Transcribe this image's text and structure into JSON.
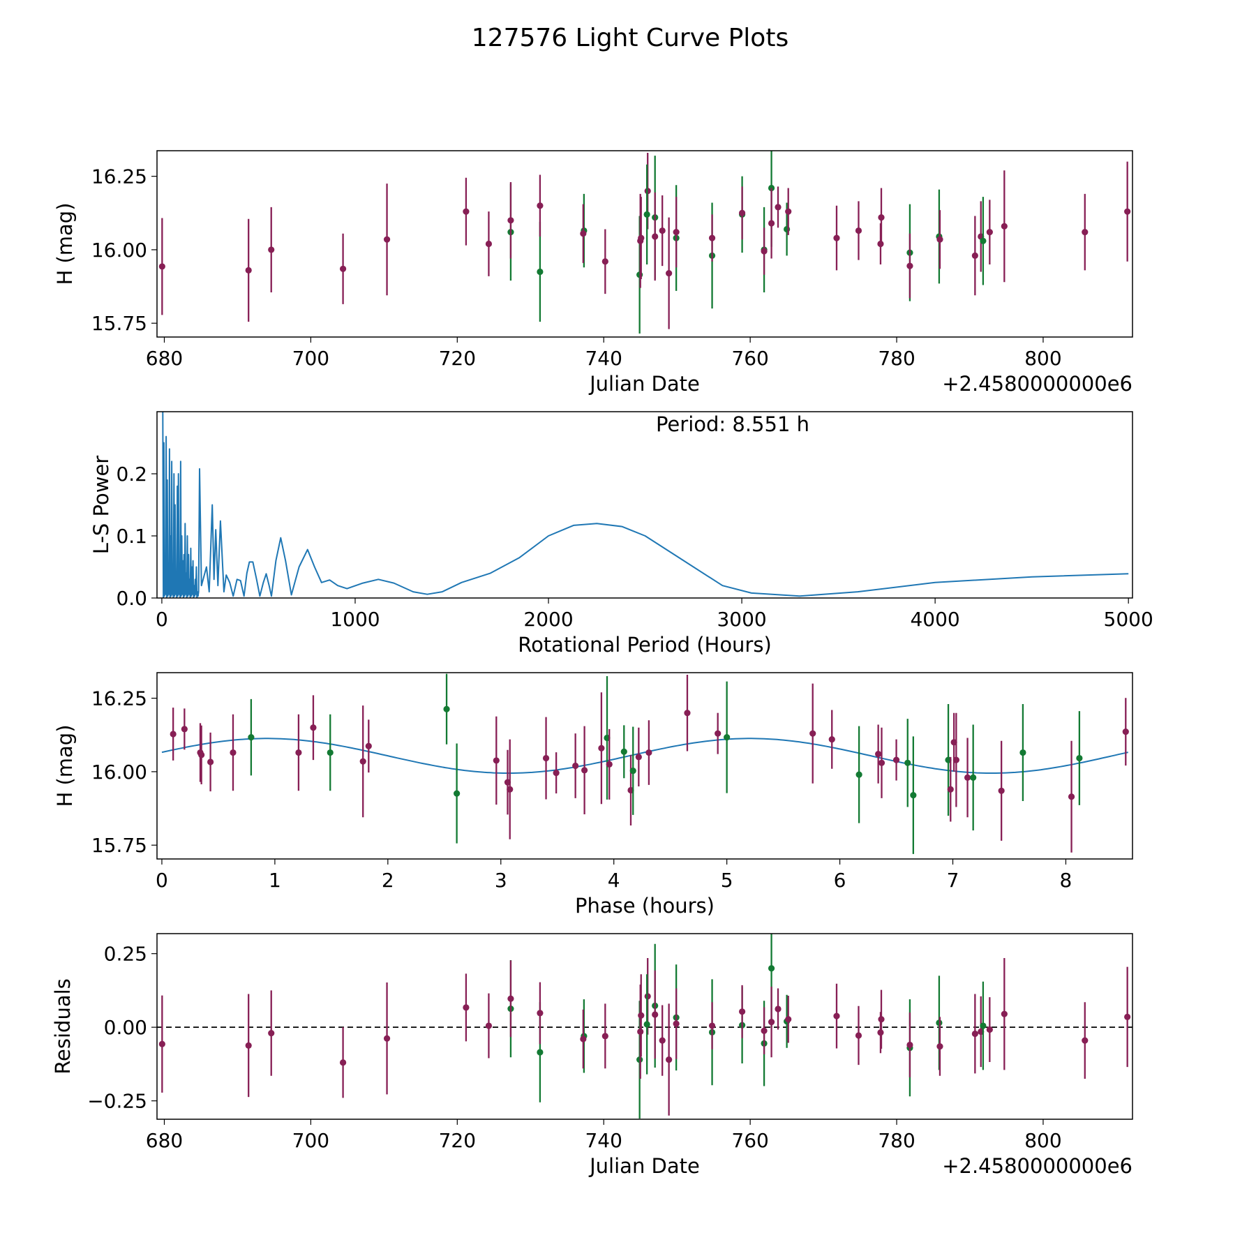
{
  "title": "127576 Light Curve Plots",
  "colors": {
    "band_a": "#871f55",
    "band_b": "#137a33",
    "periodogram": "#1f77b4",
    "zero_line": "#000000"
  },
  "chart_data": [
    {
      "type": "scatter",
      "name": "light-curve",
      "xlabel": "Julian Date",
      "ylabel": "H (mag)",
      "x_offset_label": "+2.4580000000e6",
      "xlim": [
        679.0,
        812.2
      ],
      "ylim": [
        15.703,
        16.337
      ],
      "xticks": [
        680,
        700,
        720,
        740,
        760,
        780,
        800
      ],
      "yticks": [
        {
          "v": 15.75,
          "label": "15.75"
        },
        {
          "v": 16.0,
          "label": "16.00"
        },
        {
          "v": 16.25,
          "label": "16.25"
        }
      ],
      "points": [
        {
          "jd": 679.7,
          "mag": 15.943,
          "err": 0.165,
          "band": "a",
          "res": -0.057
        },
        {
          "jd": 691.5,
          "mag": 15.93,
          "err": 0.175,
          "band": "a",
          "res": -0.062
        },
        {
          "jd": 694.6,
          "mag": 16.0,
          "err": 0.145,
          "band": "a",
          "res": -0.02
        },
        {
          "jd": 704.4,
          "mag": 15.935,
          "err": 0.12,
          "band": "a",
          "res": -0.12
        },
        {
          "jd": 710.4,
          "mag": 16.035,
          "err": 0.19,
          "band": "a",
          "res": -0.038
        },
        {
          "jd": 721.2,
          "mag": 16.13,
          "err": 0.115,
          "band": "a",
          "res": 0.067
        },
        {
          "jd": 724.3,
          "mag": 16.02,
          "err": 0.11,
          "band": "a",
          "res": 0.005
        },
        {
          "jd": 727.3,
          "mag": 16.06,
          "err": 0.165,
          "band": "b",
          "res": 0.063
        },
        {
          "jd": 727.3,
          "mag": 16.1,
          "err": 0.13,
          "band": "a",
          "res": 0.097
        },
        {
          "jd": 731.3,
          "mag": 15.925,
          "err": 0.17,
          "band": "b",
          "res": -0.085
        },
        {
          "jd": 731.3,
          "mag": 16.15,
          "err": 0.105,
          "band": "a",
          "res": 0.048
        },
        {
          "jd": 737.3,
          "mag": 16.065,
          "err": 0.125,
          "band": "b",
          "res": -0.03
        },
        {
          "jd": 737.2,
          "mag": 16.055,
          "err": 0.1,
          "band": "a",
          "res": -0.04
        },
        {
          "jd": 740.2,
          "mag": 15.96,
          "err": 0.11,
          "band": "a",
          "res": -0.03
        },
        {
          "jd": 744.9,
          "mag": 15.915,
          "err": 0.2,
          "band": "b",
          "res": -0.11
        },
        {
          "jd": 745.0,
          "mag": 16.03,
          "err": 0.16,
          "band": "a",
          "res": -0.015
        },
        {
          "jd": 745.1,
          "mag": 16.04,
          "err": 0.14,
          "band": "a",
          "res": 0.04
        },
        {
          "jd": 746.0,
          "mag": 16.2,
          "err": 0.13,
          "band": "a",
          "res": 0.105
        },
        {
          "jd": 745.9,
          "mag": 16.12,
          "err": 0.17,
          "band": "b",
          "res": 0.01
        },
        {
          "jd": 747.0,
          "mag": 16.11,
          "err": 0.21,
          "band": "b",
          "res": 0.073
        },
        {
          "jd": 747.0,
          "mag": 16.045,
          "err": 0.15,
          "band": "a",
          "res": 0.043
        },
        {
          "jd": 748.0,
          "mag": 16.065,
          "err": 0.12,
          "band": "a",
          "res": -0.045
        },
        {
          "jd": 748.9,
          "mag": 15.92,
          "err": 0.19,
          "band": "a",
          "res": -0.11
        },
        {
          "jd": 749.9,
          "mag": 16.04,
          "err": 0.18,
          "band": "b",
          "res": 0.033
        },
        {
          "jd": 749.9,
          "mag": 16.06,
          "err": 0.12,
          "band": "a",
          "res": 0.012
        },
        {
          "jd": 754.8,
          "mag": 15.98,
          "err": 0.18,
          "band": "b",
          "res": -0.017
        },
        {
          "jd": 754.8,
          "mag": 16.04,
          "err": 0.08,
          "band": "a",
          "res": 0.005
        },
        {
          "jd": 758.9,
          "mag": 16.12,
          "err": 0.13,
          "band": "b",
          "res": 0.007
        },
        {
          "jd": 758.9,
          "mag": 16.125,
          "err": 0.09,
          "band": "a",
          "res": 0.053
        },
        {
          "jd": 761.9,
          "mag": 16.0,
          "err": 0.145,
          "band": "b",
          "res": -0.055
        },
        {
          "jd": 761.9,
          "mag": 15.995,
          "err": 0.08,
          "band": "a",
          "res": -0.012
        },
        {
          "jd": 762.9,
          "mag": 16.21,
          "err": 0.2,
          "band": "b",
          "res": 0.2
        },
        {
          "jd": 762.9,
          "mag": 16.09,
          "err": 0.12,
          "band": "a",
          "res": 0.018
        },
        {
          "jd": 763.8,
          "mag": 16.145,
          "err": 0.07,
          "band": "a",
          "res": 0.062
        },
        {
          "jd": 765.0,
          "mag": 16.07,
          "err": 0.09,
          "band": "b",
          "res": 0.02
        },
        {
          "jd": 765.2,
          "mag": 16.13,
          "err": 0.08,
          "band": "a",
          "res": 0.027
        },
        {
          "jd": 771.8,
          "mag": 16.04,
          "err": 0.11,
          "band": "a",
          "res": 0.038
        },
        {
          "jd": 774.8,
          "mag": 16.065,
          "err": 0.1,
          "band": "a",
          "res": -0.028
        },
        {
          "jd": 777.9,
          "mag": 16.11,
          "err": 0.1,
          "band": "a",
          "res": 0.027
        },
        {
          "jd": 777.8,
          "mag": 16.02,
          "err": 0.07,
          "band": "a",
          "res": -0.018
        },
        {
          "jd": 781.8,
          "mag": 15.99,
          "err": 0.165,
          "band": "b",
          "res": -0.07
        },
        {
          "jd": 781.8,
          "mag": 15.945,
          "err": 0.11,
          "band": "a",
          "res": -0.06
        },
        {
          "jd": 785.8,
          "mag": 16.045,
          "err": 0.16,
          "band": "b",
          "res": 0.015
        },
        {
          "jd": 785.9,
          "mag": 16.035,
          "err": 0.1,
          "band": "a",
          "res": -0.065
        },
        {
          "jd": 790.7,
          "mag": 15.98,
          "err": 0.135,
          "band": "a",
          "res": -0.022
        },
        {
          "jd": 791.5,
          "mag": 16.045,
          "err": 0.12,
          "band": "a",
          "res": -0.015
        },
        {
          "jd": 791.8,
          "mag": 16.03,
          "err": 0.15,
          "band": "b",
          "res": 0.005
        },
        {
          "jd": 792.7,
          "mag": 16.06,
          "err": 0.11,
          "band": "a",
          "res": -0.008
        },
        {
          "jd": 794.7,
          "mag": 16.08,
          "err": 0.19,
          "band": "a",
          "res": 0.045
        },
        {
          "jd": 805.7,
          "mag": 16.06,
          "err": 0.13,
          "band": "a",
          "res": -0.045
        },
        {
          "jd": 811.5,
          "mag": 16.13,
          "err": 0.17,
          "band": "a",
          "res": 0.035
        }
      ]
    },
    {
      "type": "line",
      "name": "periodogram",
      "xlabel": "Rotational Period (Hours)",
      "ylabel": "L-S Power",
      "annotation": "Period: 8.551 h",
      "xlim": [
        -25,
        5021
      ],
      "ylim": [
        0,
        0.3
      ],
      "xticks": [
        0,
        1000,
        2000,
        3000,
        4000,
        5000
      ],
      "yticks": [
        {
          "v": 0.0,
          "label": "0.0"
        },
        {
          "v": 0.1,
          "label": "0.1"
        },
        {
          "v": 0.2,
          "label": "0.2"
        }
      ],
      "dense_range": [
        5,
        190
      ],
      "dense_peaks": [
        0.3,
        0.25,
        0.05,
        0.26,
        0.19,
        0.02,
        0.24,
        0.1,
        0.22,
        0.01,
        0.2,
        0.15,
        0.03,
        0.18,
        0.2,
        0.05,
        0.22,
        0.1,
        0.06,
        0.07,
        0.12,
        0.04,
        0.1,
        0.07,
        0.03,
        0.08,
        0.05,
        0.06,
        0.02,
        0.03,
        0.05,
        0.01
      ],
      "curve": [
        [
          190,
          0.01
        ],
        [
          195,
          0.208
        ],
        [
          205,
          0.02
        ],
        [
          231,
          0.05
        ],
        [
          245,
          0.01
        ],
        [
          261,
          0.15
        ],
        [
          270,
          0.03
        ],
        [
          279,
          0.11
        ],
        [
          290,
          0.02
        ],
        [
          303,
          0.124
        ],
        [
          321,
          0.01
        ],
        [
          333,
          0.037
        ],
        [
          351,
          0.025
        ],
        [
          369,
          0.003
        ],
        [
          389,
          0.03
        ],
        [
          407,
          0.028
        ],
        [
          425,
          0.003
        ],
        [
          440,
          0.04
        ],
        [
          453,
          0.058
        ],
        [
          471,
          0.058
        ],
        [
          490,
          0.03
        ],
        [
          507,
          0.003
        ],
        [
          525,
          0.025
        ],
        [
          540,
          0.039
        ],
        [
          555,
          0.02
        ],
        [
          567,
          0.003
        ],
        [
          590,
          0.06
        ],
        [
          615,
          0.097
        ],
        [
          640,
          0.06
        ],
        [
          670,
          0.005
        ],
        [
          710,
          0.05
        ],
        [
          754,
          0.078
        ],
        [
          790,
          0.05
        ],
        [
          826,
          0.025
        ],
        [
          868,
          0.029
        ],
        [
          910,
          0.02
        ],
        [
          958,
          0.015
        ],
        [
          1040,
          0.024
        ],
        [
          1120,
          0.03
        ],
        [
          1200,
          0.024
        ],
        [
          1300,
          0.01
        ],
        [
          1373,
          0.006
        ],
        [
          1450,
          0.01
        ],
        [
          1550,
          0.025
        ],
        [
          1700,
          0.04
        ],
        [
          1850,
          0.065
        ],
        [
          2000,
          0.1
        ],
        [
          2130,
          0.117
        ],
        [
          2250,
          0.12
        ],
        [
          2380,
          0.115
        ],
        [
          2500,
          0.1
        ],
        [
          2700,
          0.06
        ],
        [
          2900,
          0.02
        ],
        [
          3050,
          0.008
        ],
        [
          3300,
          0.003
        ],
        [
          3600,
          0.01
        ],
        [
          4000,
          0.025
        ],
        [
          4500,
          0.034
        ],
        [
          5000,
          0.039
        ]
      ]
    },
    {
      "type": "scatter",
      "name": "phased-curve",
      "xlabel": "Phase (hours)",
      "ylabel": "H (mag)",
      "xlim": [
        -0.043,
        8.59
      ],
      "ylim": [
        15.703,
        16.337
      ],
      "xticks": [
        0,
        1,
        2,
        3,
        4,
        5,
        6,
        7,
        8
      ],
      "yticks": [
        {
          "v": 15.75,
          "label": "15.75"
        },
        {
          "v": 16.0,
          "label": "16.00"
        },
        {
          "v": 16.25,
          "label": "16.25"
        }
      ],
      "model": {
        "mean": 16.054,
        "amplitude": 0.059,
        "peak_phase": 0.93,
        "period": 8.551
      },
      "points": [
        [
          0.1,
          16.128,
          0.09,
          "a"
        ],
        [
          0.2,
          16.145,
          0.07,
          "a"
        ],
        [
          0.34,
          16.065,
          0.1,
          "a"
        ],
        [
          0.35,
          16.057,
          0.1,
          "a"
        ],
        [
          0.43,
          16.033,
          0.1,
          "a"
        ],
        [
          0.63,
          16.065,
          0.13,
          "a"
        ],
        [
          0.79,
          16.117,
          0.13,
          "b"
        ],
        [
          1.21,
          16.065,
          0.13,
          "a"
        ],
        [
          1.34,
          16.15,
          0.11,
          "a"
        ],
        [
          1.49,
          16.065,
          0.13,
          "b"
        ],
        [
          1.78,
          16.035,
          0.19,
          "a"
        ],
        [
          1.83,
          16.087,
          0.09,
          "a"
        ],
        [
          2.52,
          16.213,
          0.12,
          "b"
        ],
        [
          2.61,
          15.926,
          0.17,
          "b"
        ],
        [
          2.96,
          16.038,
          0.15,
          "a"
        ],
        [
          3.06,
          15.964,
          0.11,
          "a"
        ],
        [
          3.08,
          15.94,
          0.17,
          "a"
        ],
        [
          3.4,
          16.046,
          0.14,
          "a"
        ],
        [
          3.49,
          15.996,
          0.07,
          "a"
        ],
        [
          3.66,
          16.02,
          0.11,
          "a"
        ],
        [
          3.74,
          16.005,
          0.15,
          "a"
        ],
        [
          3.89,
          16.08,
          0.19,
          "a"
        ],
        [
          3.94,
          16.115,
          0.21,
          "b"
        ],
        [
          3.96,
          16.025,
          0.12,
          "a"
        ],
        [
          4.09,
          16.068,
          0.09,
          "b"
        ],
        [
          4.15,
          15.937,
          0.12,
          "a"
        ],
        [
          4.17,
          16.003,
          0.15,
          "b"
        ],
        [
          4.22,
          16.05,
          0.1,
          "a"
        ],
        [
          4.31,
          16.065,
          0.11,
          "a"
        ],
        [
          4.65,
          16.2,
          0.13,
          "a"
        ],
        [
          4.92,
          16.13,
          0.07,
          "a"
        ],
        [
          5.0,
          16.117,
          0.19,
          "b"
        ],
        [
          5.76,
          16.13,
          0.17,
          "a"
        ],
        [
          5.93,
          16.11,
          0.1,
          "a"
        ],
        [
          6.17,
          15.99,
          0.165,
          "b"
        ],
        [
          6.34,
          16.06,
          0.1,
          "a"
        ],
        [
          6.37,
          16.03,
          0.12,
          "a"
        ],
        [
          6.5,
          16.04,
          0.07,
          "a"
        ],
        [
          6.6,
          16.03,
          0.15,
          "b"
        ],
        [
          6.65,
          15.92,
          0.2,
          "b"
        ],
        [
          6.96,
          16.04,
          0.19,
          "b"
        ],
        [
          6.98,
          15.94,
          0.11,
          "a"
        ],
        [
          7.01,
          16.1,
          0.1,
          "a"
        ],
        [
          7.03,
          16.04,
          0.16,
          "a"
        ],
        [
          7.13,
          15.98,
          0.135,
          "a"
        ],
        [
          7.18,
          15.98,
          0.18,
          "b"
        ],
        [
          7.43,
          15.935,
          0.17,
          "a"
        ],
        [
          7.62,
          16.065,
          0.165,
          "b"
        ],
        [
          8.05,
          15.915,
          0.19,
          "a"
        ],
        [
          8.12,
          16.046,
          0.16,
          "b"
        ],
        [
          8.53,
          16.136,
          0.115,
          "a"
        ]
      ]
    },
    {
      "type": "scatter",
      "name": "residuals",
      "xlabel": "Julian Date",
      "ylabel": "Residuals",
      "x_offset_label": "+2.4580000000e6",
      "xlim": [
        679.0,
        812.2
      ],
      "ylim": [
        -0.3125,
        0.318
      ],
      "xticks": [
        680,
        700,
        720,
        740,
        760,
        780,
        800
      ],
      "yticks": [
        {
          "v": -0.25,
          "label": "−0.25"
        },
        {
          "v": 0.0,
          "label": "0.00"
        },
        {
          "v": 0.25,
          "label": "0.25"
        }
      ],
      "zero_line": 0
    }
  ]
}
